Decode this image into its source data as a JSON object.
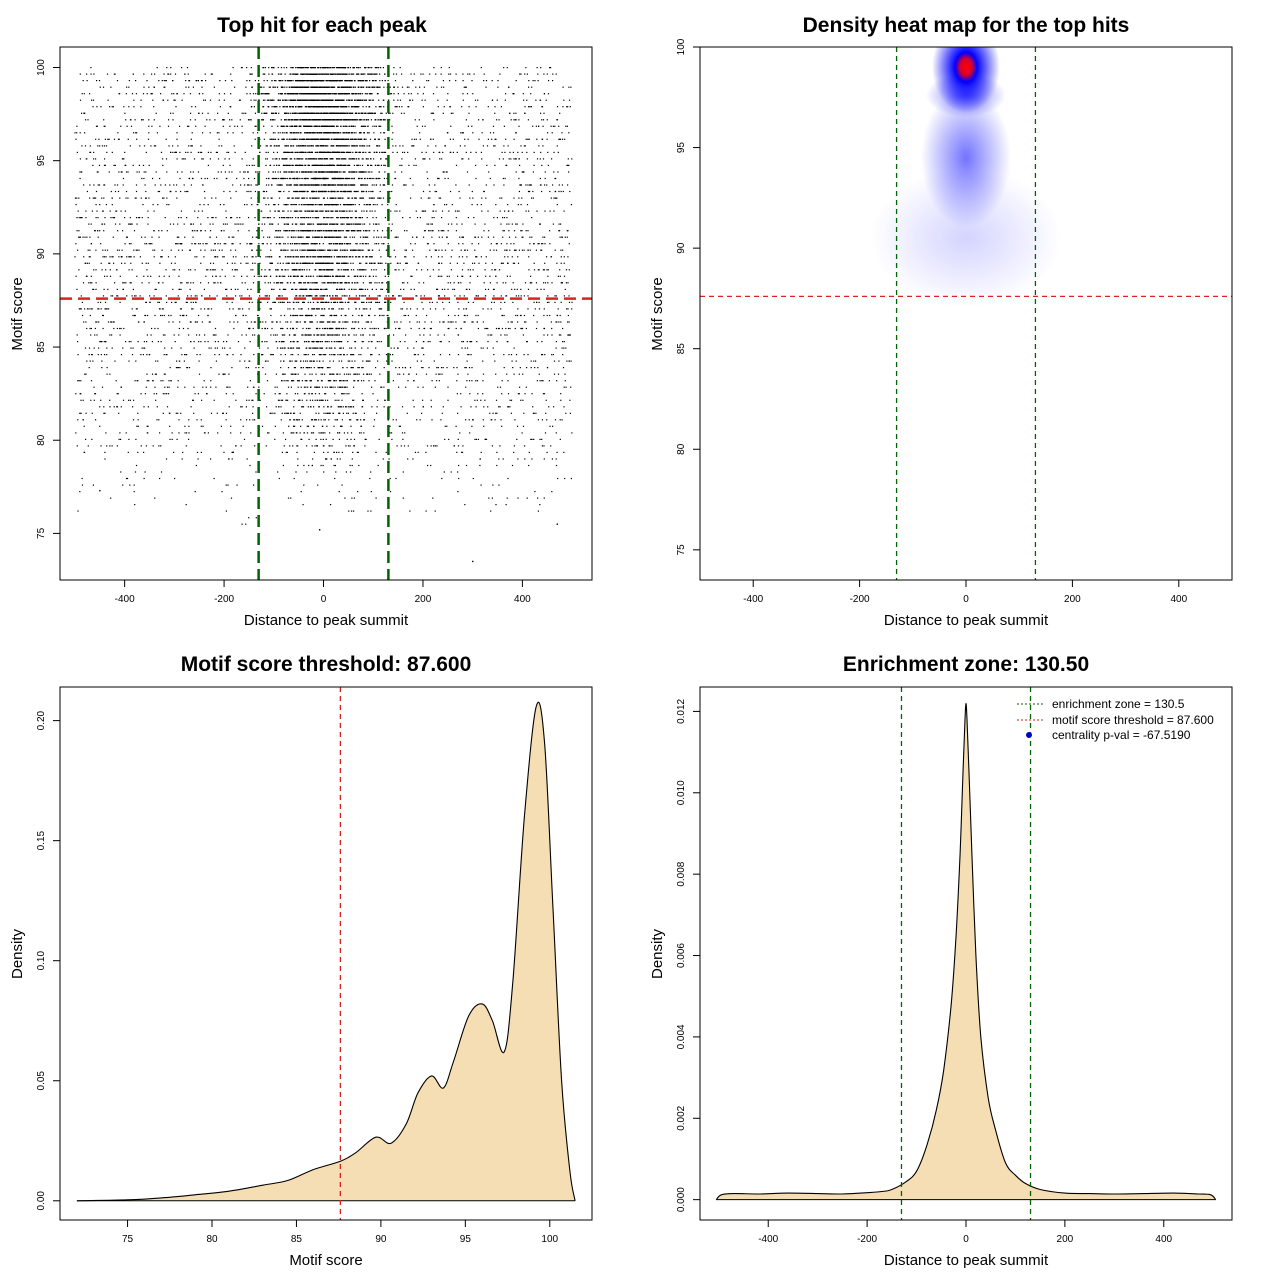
{
  "chart_data": [
    {
      "type": "scatter",
      "title": "Top hit for each peak",
      "xlabel": "Distance to peak summit",
      "ylabel": "Motif score",
      "xlim": [
        -530,
        540
      ],
      "ylim": [
        72.5,
        101.1
      ],
      "xticks": [
        -400,
        -200,
        0,
        200,
        400
      ],
      "yticks": [
        75,
        80,
        85,
        90,
        95,
        100
      ],
      "xtick_labels": [
        "-400",
        "-200",
        "0",
        "200",
        "400"
      ],
      "ytick_labels": [
        "75",
        "80",
        "85",
        "90",
        "95",
        "100"
      ],
      "point_count": 9000,
      "x_range": [
        -500,
        500
      ],
      "y_range": [
        73.5,
        100
      ],
      "point_color": "#000000",
      "vlines": [
        {
          "x": -130.5,
          "color": "#006400",
          "style": "dashed"
        },
        {
          "x": 130.5,
          "color": "#006400",
          "style": "dashed"
        }
      ],
      "hlines": [
        {
          "y": 87.6,
          "color": "#dd2222",
          "style": "dashed"
        }
      ]
    },
    {
      "type": "heatmap",
      "title": "Density heat map for the top hits",
      "xlabel": "Distance to peak summit",
      "ylabel": "Motif score",
      "xlim": [
        -500,
        500
      ],
      "ylim": [
        73.5,
        100
      ],
      "xticks": [
        -400,
        -200,
        0,
        200,
        400
      ],
      "yticks": [
        75,
        80,
        85,
        90,
        95,
        100
      ],
      "xtick_labels": [
        "-400",
        "-200",
        "0",
        "200",
        "400"
      ],
      "ytick_labels": [
        "75",
        "80",
        "85",
        "90",
        "95",
        "100"
      ],
      "color_scale": [
        "#ffffff",
        "#0000ff",
        "#ff0000"
      ],
      "density_peak": {
        "x": 0,
        "y": 99
      },
      "vlines": [
        {
          "x": -130.5,
          "color": "#006400",
          "style": "dashed"
        },
        {
          "x": 130.5,
          "color": "#006400",
          "style": "dashed"
        }
      ],
      "hlines": [
        {
          "y": 87.6,
          "color": "#dd2222",
          "style": "dashed"
        }
      ]
    },
    {
      "type": "area",
      "title": "Motif score threshold: 87.600",
      "xlabel": "Motif score",
      "ylabel": "Density",
      "xlim": [
        71,
        102.5
      ],
      "ylim": [
        -0.008,
        0.214
      ],
      "xticks": [
        75,
        80,
        85,
        90,
        95,
        100
      ],
      "yticks": [
        0.0,
        0.05,
        0.1,
        0.15,
        0.2
      ],
      "xtick_labels": [
        "75",
        "80",
        "85",
        "90",
        "95",
        "100"
      ],
      "ytick_labels": [
        "0.00",
        "0.05",
        "0.10",
        "0.15",
        "0.20"
      ],
      "fill_color": "#f5deb3",
      "x": [
        72,
        75,
        77,
        79,
        81,
        83,
        84.5,
        86,
        87.6,
        88.5,
        89.7,
        90.6,
        91.5,
        92.2,
        93,
        93.7,
        94.3,
        95.2,
        96,
        96.6,
        97.3,
        97.8,
        98.5,
        99.2,
        99.7,
        100.2,
        100.7,
        101.2,
        101.5
      ],
      "y": [
        0.0,
        0.0004,
        0.0012,
        0.0025,
        0.004,
        0.0065,
        0.0085,
        0.013,
        0.0165,
        0.02,
        0.0265,
        0.024,
        0.032,
        0.045,
        0.052,
        0.047,
        0.058,
        0.077,
        0.082,
        0.075,
        0.062,
        0.09,
        0.16,
        0.206,
        0.19,
        0.12,
        0.05,
        0.012,
        0.0
      ],
      "vlines": [
        {
          "x": 87.6,
          "color": "#dd2222",
          "style": "dashed"
        }
      ]
    },
    {
      "type": "area",
      "title": "Enrichment zone: 130.50",
      "xlabel": "Distance to peak summit",
      "ylabel": "Density",
      "xlim": [
        -538,
        538
      ],
      "ylim": [
        -0.0005,
        0.0126
      ],
      "xticks": [
        -400,
        -200,
        0,
        200,
        400
      ],
      "yticks": [
        0.0,
        0.002,
        0.004,
        0.006,
        0.008,
        0.01,
        0.012
      ],
      "xtick_labels": [
        "-400",
        "-200",
        "0",
        "200",
        "400"
      ],
      "ytick_labels": [
        "0.000",
        "0.002",
        "0.004",
        "0.006",
        "0.008",
        "0.010",
        "0.012"
      ],
      "fill_color": "#f5deb3",
      "x": [
        -505,
        -495,
        -470,
        -420,
        -360,
        -300,
        -250,
        -200,
        -170,
        -150,
        -120,
        -100,
        -80,
        -60,
        -45,
        -30,
        -20,
        -12,
        -6,
        -2,
        0,
        2,
        6,
        12,
        20,
        30,
        45,
        60,
        80,
        100,
        120,
        150,
        200,
        250,
        300,
        360,
        420,
        470,
        495,
        505
      ],
      "y": [
        0.0,
        0.00012,
        0.00015,
        0.00014,
        0.00016,
        0.00015,
        0.00014,
        0.00017,
        0.0002,
        0.00025,
        0.00045,
        0.0007,
        0.0013,
        0.0022,
        0.0032,
        0.0048,
        0.0065,
        0.0085,
        0.0105,
        0.0118,
        0.0122,
        0.0118,
        0.0105,
        0.0085,
        0.006,
        0.004,
        0.0025,
        0.0017,
        0.0009,
        0.0006,
        0.0004,
        0.00025,
        0.00016,
        0.00015,
        0.00014,
        0.00015,
        0.00016,
        0.00014,
        0.00012,
        0.0
      ],
      "vlines": [
        {
          "x": -130.5,
          "color": "#006400",
          "style": "dashed"
        },
        {
          "x": 130.5,
          "color": "#006400",
          "style": "dashed"
        }
      ],
      "legend": {
        "position": "top-right",
        "entries": [
          {
            "label": "enrichment zone = 130.5",
            "color": "#006400",
            "marker": "dashed-line"
          },
          {
            "label": "motif score threshold = 87.600",
            "color": "#dd2222",
            "marker": "dashed-line"
          },
          {
            "label": "centrality p-val = -67.5190",
            "color": "#0000cc",
            "marker": "dot"
          }
        ]
      }
    }
  ]
}
